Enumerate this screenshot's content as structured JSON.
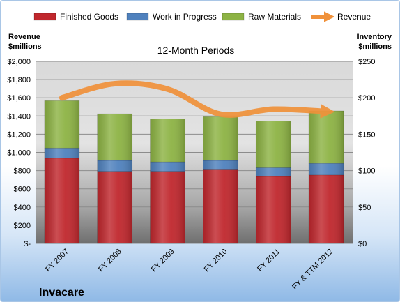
{
  "chart_data": {
    "type": "bar",
    "stacked": true,
    "title": "12-Month Periods",
    "company": "Invacare",
    "categories": [
      "FY 2007",
      "FY 2008",
      "FY 2009",
      "FY 2010",
      "FY 2011",
      "FY & TTM 2012"
    ],
    "left_axis": {
      "label_line1": "Revenue",
      "label_line2": "$millions",
      "ylim": [
        0,
        2000
      ],
      "ticks": [
        0,
        200,
        400,
        600,
        800,
        1000,
        1200,
        1400,
        1600,
        1800,
        2000
      ],
      "tick_labels": [
        "$-",
        "$200",
        "$400",
        "$600",
        "$800",
        "$1,000",
        "$1,200",
        "$1,400",
        "$1,600",
        "$1,800",
        "$2,000"
      ]
    },
    "right_axis": {
      "label_line1": "Inventory",
      "label_line2": "$millions",
      "ylim": [
        0,
        250
      ],
      "ticks": [
        0,
        50,
        100,
        150,
        200,
        250
      ],
      "tick_labels": [
        "$0",
        "$50",
        "$100",
        "$150",
        "$200",
        "$250"
      ]
    },
    "series": [
      {
        "name": "Finished Goods",
        "axis": "right",
        "kind": "bar",
        "color": "#c0272d",
        "values": [
          117,
          99,
          99,
          101,
          92,
          94
        ]
      },
      {
        "name": "Work in Progress",
        "axis": "right",
        "kind": "bar",
        "color": "#4f81bd",
        "values": [
          14,
          15,
          13,
          13,
          12,
          16
        ]
      },
      {
        "name": "Raw Materials",
        "axis": "right",
        "kind": "bar",
        "color": "#8db344",
        "values": [
          65,
          64,
          59,
          60,
          64,
          72
        ]
      },
      {
        "name": "Revenue",
        "axis": "left",
        "kind": "line",
        "color": "#f0913a",
        "values": [
          1600,
          1755,
          1695,
          1420,
          1475,
          1450
        ]
      }
    ],
    "grid": true,
    "legend_position": "top"
  }
}
